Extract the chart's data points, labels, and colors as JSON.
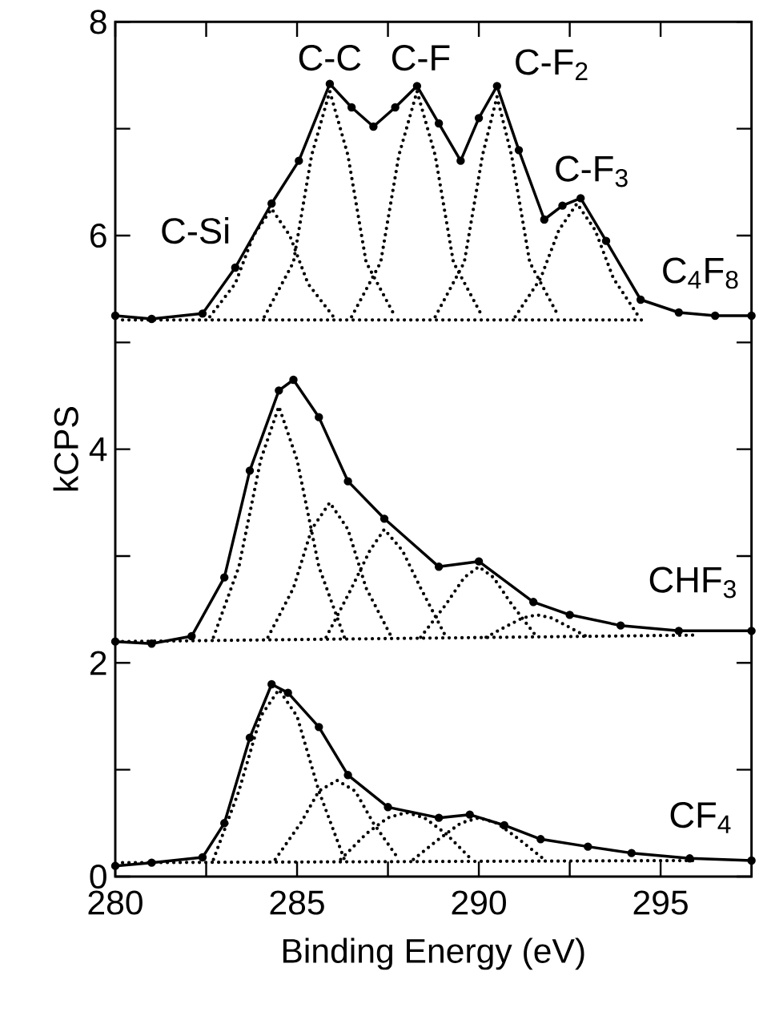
{
  "chart_data": {
    "type": "line",
    "xlabel": "Binding Energy (eV)",
    "ylabel": "kCPS",
    "xlim": [
      280,
      297.5
    ],
    "ylim": [
      0,
      8
    ],
    "xticks": [
      280,
      {
        "value": 282.5,
        "label": null
      },
      285,
      {
        "value": 287.5,
        "label": null
      },
      290,
      {
        "value": 292.5,
        "label": null
      },
      295
    ],
    "yticks": [
      0,
      {
        "value": 1,
        "label": null
      },
      2,
      {
        "value": 3,
        "label": null
      },
      4,
      {
        "value": 5,
        "label": null
      },
      6,
      {
        "value": 7,
        "label": null
      },
      8
    ],
    "series": [
      {
        "color": "#000000",
        "marker": "circle",
        "line_style": "solid",
        "x": [
          280.0,
          281.0,
          282.4,
          283.3,
          284.3,
          285.05,
          285.9,
          286.5,
          287.1,
          287.7,
          288.3,
          288.9,
          289.5,
          290.0,
          290.5,
          291.1,
          291.8,
          292.3,
          292.8,
          293.5,
          294.45,
          295.5,
          296.5,
          297.5
        ],
        "values": [
          5.25,
          5.22,
          5.27,
          5.7,
          6.3,
          6.7,
          7.42,
          7.2,
          7.02,
          7.2,
          7.4,
          7.05,
          6.7,
          7.1,
          7.4,
          6.8,
          6.15,
          6.28,
          6.35,
          5.95,
          5.4,
          5.28,
          5.25,
          5.25
        ]
      },
      {
        "color": "#000000",
        "marker": "none",
        "line_style": "dotted",
        "x": [
          280.2,
          294.5
        ],
        "values": [
          5.21,
          5.21
        ]
      },
      {
        "color": "#000000",
        "marker": "none",
        "line_style": "dotted",
        "x": [
          282.6,
          283.3,
          283.8,
          284.3,
          284.8,
          285.3,
          286.0
        ],
        "values": [
          5.24,
          5.55,
          6.0,
          6.25,
          6.0,
          5.55,
          5.24
        ]
      },
      {
        "color": "#000000",
        "marker": "none",
        "line_style": "dotted",
        "x": [
          284.1,
          284.9,
          285.4,
          285.9,
          286.4,
          286.9,
          287.7
        ],
        "values": [
          5.24,
          5.75,
          6.75,
          7.35,
          6.75,
          5.75,
          5.24
        ]
      },
      {
        "color": "#000000",
        "marker": "none",
        "line_style": "dotted",
        "x": [
          286.5,
          287.3,
          287.8,
          288.3,
          288.8,
          289.3,
          290.1
        ],
        "values": [
          5.24,
          5.75,
          6.75,
          7.35,
          6.75,
          5.75,
          5.24
        ]
      },
      {
        "color": "#000000",
        "marker": "none",
        "line_style": "dotted",
        "x": [
          288.8,
          289.6,
          290.1,
          290.5,
          290.9,
          291.4,
          292.2
        ],
        "values": [
          5.24,
          5.75,
          6.75,
          7.3,
          6.75,
          5.75,
          5.24
        ]
      },
      {
        "color": "#000000",
        "marker": "none",
        "line_style": "dotted",
        "x": [
          291.0,
          291.7,
          292.2,
          292.7,
          293.2,
          293.7,
          294.4
        ],
        "values": [
          5.24,
          5.6,
          6.05,
          6.3,
          6.05,
          5.6,
          5.24
        ]
      },
      {
        "color": "#000000",
        "marker": "circle",
        "line_style": "solid",
        "x": [
          280.0,
          281.0,
          282.1,
          283.0,
          283.7,
          284.5,
          284.9,
          285.6,
          286.4,
          287.4,
          288.9,
          290.0,
          291.5,
          292.5,
          293.9,
          295.5,
          297.5
        ],
        "values": [
          2.2,
          2.18,
          2.25,
          2.8,
          3.8,
          4.55,
          4.65,
          4.3,
          3.7,
          3.35,
          2.9,
          2.95,
          2.57,
          2.45,
          2.35,
          2.3,
          2.3
        ]
      },
      {
        "color": "#000000",
        "marker": "none",
        "line_style": "dotted",
        "x": [
          280.2,
          296.0
        ],
        "values": [
          2.2,
          2.26
        ]
      },
      {
        "color": "#000000",
        "marker": "none",
        "line_style": "dotted",
        "x": [
          282.7,
          283.4,
          284.0,
          284.5,
          285.0,
          285.6,
          286.3
        ],
        "values": [
          2.24,
          2.9,
          3.9,
          4.4,
          3.9,
          2.9,
          2.24
        ]
      },
      {
        "color": "#000000",
        "marker": "none",
        "line_style": "dotted",
        "x": [
          284.2,
          284.9,
          285.4,
          285.9,
          286.4,
          286.9,
          287.6
        ],
        "values": [
          2.24,
          2.7,
          3.25,
          3.5,
          3.25,
          2.7,
          2.24
        ]
      },
      {
        "color": "#000000",
        "marker": "none",
        "line_style": "dotted",
        "x": [
          285.8,
          286.5,
          287.0,
          287.4,
          287.9,
          288.4,
          289.1
        ],
        "values": [
          2.24,
          2.7,
          3.05,
          3.25,
          3.05,
          2.7,
          2.24
        ]
      },
      {
        "color": "#000000",
        "marker": "none",
        "line_style": "dotted",
        "x": [
          288.4,
          289.1,
          289.6,
          290.0,
          290.4,
          290.9,
          291.6
        ],
        "values": [
          2.24,
          2.55,
          2.8,
          2.9,
          2.8,
          2.55,
          2.24
        ]
      },
      {
        "color": "#000000",
        "marker": "none",
        "line_style": "dotted",
        "x": [
          290.2,
          290.8,
          291.2,
          291.6,
          292.0,
          292.4,
          293.0
        ],
        "values": [
          2.24,
          2.35,
          2.42,
          2.45,
          2.42,
          2.35,
          2.24
        ]
      },
      {
        "color": "#000000",
        "marker": "circle",
        "line_style": "solid",
        "x": [
          280.0,
          281.0,
          282.4,
          283.0,
          283.7,
          284.3,
          284.75,
          285.6,
          286.4,
          287.5,
          288.9,
          289.75,
          290.7,
          291.7,
          293.0,
          294.2,
          295.8,
          297.5
        ],
        "values": [
          0.1,
          0.13,
          0.18,
          0.5,
          1.3,
          1.8,
          1.72,
          1.4,
          0.95,
          0.65,
          0.55,
          0.58,
          0.48,
          0.35,
          0.28,
          0.22,
          0.17,
          0.15
        ]
      },
      {
        "color": "#000000",
        "marker": "none",
        "line_style": "dotted",
        "x": [
          280.2,
          296.0
        ],
        "values": [
          0.13,
          0.15
        ]
      },
      {
        "color": "#000000",
        "marker": "none",
        "line_style": "dotted",
        "x": [
          282.7,
          283.4,
          284.0,
          284.5,
          285.0,
          285.6,
          286.3
        ],
        "values": [
          0.16,
          0.8,
          1.5,
          1.75,
          1.5,
          0.8,
          0.16
        ]
      },
      {
        "color": "#000000",
        "marker": "none",
        "line_style": "dotted",
        "x": [
          284.4,
          285.1,
          285.6,
          286.1,
          286.6,
          287.1,
          287.8
        ],
        "values": [
          0.16,
          0.5,
          0.8,
          0.9,
          0.8,
          0.5,
          0.16
        ]
      },
      {
        "color": "#000000",
        "marker": "none",
        "line_style": "dotted",
        "x": [
          286.2,
          286.9,
          287.5,
          288.0,
          288.5,
          289.1,
          289.8
        ],
        "values": [
          0.16,
          0.4,
          0.55,
          0.6,
          0.55,
          0.4,
          0.16
        ]
      },
      {
        "color": "#000000",
        "marker": "none",
        "line_style": "dotted",
        "x": [
          288.2,
          288.9,
          289.5,
          290.0,
          290.5,
          291.1,
          291.8
        ],
        "values": [
          0.16,
          0.35,
          0.5,
          0.55,
          0.5,
          0.35,
          0.16
        ]
      }
    ],
    "annotations": [
      "C-Si",
      "C-C",
      "C-F",
      "C-F$_{2}$",
      "C-F$_{3}$",
      "C$_{4}$F$_{8}$",
      "CHF$_{3}$",
      "CF$_{4}$"
    ]
  }
}
